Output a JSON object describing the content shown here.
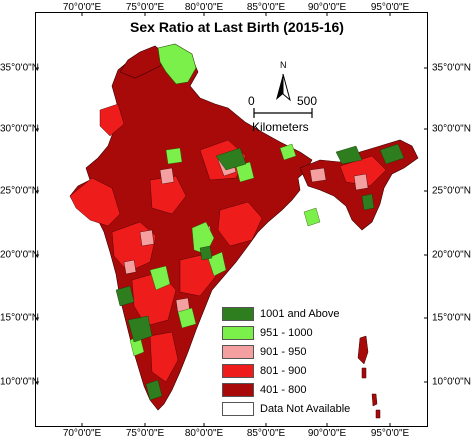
{
  "title": "Sex Ratio at Last Birth (2015-16)",
  "x_ticks": [
    "70°0'0\"E",
    "75°0'0\"E",
    "80°0'0\"E",
    "85°0'0\"E",
    "90°0'0\"E",
    "95°0'0\"E"
  ],
  "y_ticks": [
    "35°0'0\"N",
    "30°0'0\"N",
    "25°0'0\"N",
    "20°0'0\"N",
    "15°0'0\"N",
    "10°0'0\"N"
  ],
  "north_label": "N",
  "scale": {
    "start": "0",
    "end": "500",
    "unit": "Kilometers"
  },
  "legend": [
    {
      "label": "1001 and Above",
      "color": "#2e7d1e"
    },
    {
      "label": "951 - 1000",
      "color": "#7cf04a"
    },
    {
      "label": "901 - 950",
      "color": "#f4a0a0"
    },
    {
      "label": "801 - 900",
      "color": "#ef1c1c"
    },
    {
      "label": "401 - 800",
      "color": "#a80a0a"
    },
    {
      "label": "Data Not Available",
      "color": "#ffffff"
    }
  ]
}
